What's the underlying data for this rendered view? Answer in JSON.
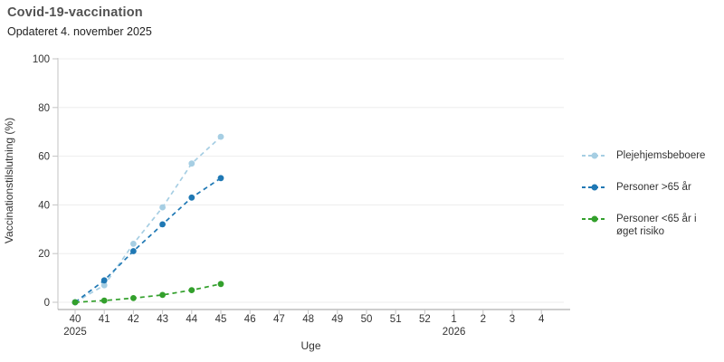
{
  "header": {
    "title": "Covid-19-vaccination",
    "subtitle": "Opdateret 4. november 2025"
  },
  "chart_data": {
    "type": "line",
    "title": "Covid-19-vaccination",
    "subtitle": "Opdateret 4. november 2025",
    "xlabel": "Uge",
    "ylabel": "Vaccinationstilslutning (%)",
    "ylim": [
      0,
      100
    ],
    "y_ticks": [
      0,
      20,
      40,
      60,
      80,
      100
    ],
    "x_axis_ticks": [
      "40",
      "41",
      "42",
      "43",
      "44",
      "45",
      "46",
      "47",
      "48",
      "49",
      "50",
      "51",
      "52",
      "1",
      "2",
      "3",
      "4"
    ],
    "x_year_labels": [
      {
        "label": "2025",
        "tick_index": 0
      },
      {
        "label": "2026",
        "tick_index": 13
      }
    ],
    "x": [
      40,
      41,
      42,
      43,
      44,
      45
    ],
    "series": [
      {
        "name": "Plejehjemsbeboere",
        "color": "#a6cee3",
        "values": [
          0,
          7,
          24,
          39,
          57,
          68
        ]
      },
      {
        "name": "Personer >65 år",
        "color": "#1f78b4",
        "values": [
          0,
          9,
          21,
          32,
          43,
          51
        ]
      },
      {
        "name": "Personer <65 år i øget risiko",
        "color": "#33a02c",
        "values": [
          0,
          0.7,
          1.7,
          3,
          5,
          7.5
        ]
      }
    ],
    "grid": true,
    "legend_position": "right",
    "line_style": "dashed",
    "colors": {
      "gridline": "#ededed",
      "y_axis_line": "#c3c3c3",
      "x_axis_line": "#9e9e9e",
      "tick": "#c3c3c3",
      "label_text": "#333333"
    }
  }
}
